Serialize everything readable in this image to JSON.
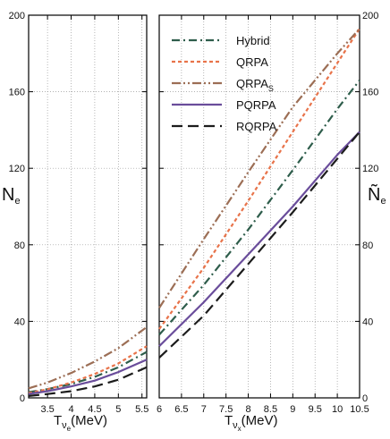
{
  "chart_data": [
    {
      "type": "line",
      "panel": "left",
      "xlim": [
        3.1,
        5.6
      ],
      "ylim": [
        0,
        200
      ],
      "x_ticks": [
        3.5,
        4,
        4.5,
        5,
        5.5
      ],
      "y_ticks": [
        0,
        40,
        80,
        120,
        160,
        200
      ],
      "x_tick_labels": [
        "3.5",
        "4",
        "4.5",
        "5",
        "5.5"
      ],
      "y_tick_labels": [
        "0",
        "40",
        "80",
        "120",
        "160",
        "200"
      ],
      "ylabel_main": "N",
      "ylabel_sub": "e",
      "xlabel_main": "T",
      "xlabel_sub": "ν",
      "xlabel_subsub": "e",
      "xlabel_unit": "(MeV)",
      "series": [
        {
          "name": "Hybrid",
          "x": [
            3.1,
            3.5,
            4,
            4.5,
            5,
            5.6
          ],
          "y": [
            3,
            4.6,
            7.2,
            11,
            16,
            24
          ]
        },
        {
          "name": "QRPA",
          "x": [
            3.1,
            3.5,
            4,
            4.5,
            5,
            5.6
          ],
          "y": [
            2.5,
            4.5,
            8,
            12.5,
            18,
            27
          ]
        },
        {
          "name": "QRPA_S",
          "x": [
            3.1,
            3.5,
            4,
            4.5,
            5,
            5.6
          ],
          "y": [
            5,
            8,
            13,
            19,
            26,
            37
          ]
        },
        {
          "name": "PQRPA",
          "x": [
            3.1,
            3.5,
            4,
            4.5,
            5,
            5.6
          ],
          "y": [
            2,
            3.5,
            6,
            9,
            13.5,
            20
          ]
        },
        {
          "name": "RQRPA",
          "x": [
            3.1,
            3.5,
            4,
            4.5,
            5,
            5.6
          ],
          "y": [
            1,
            2,
            3.5,
            6,
            9.5,
            16
          ]
        }
      ]
    },
    {
      "type": "line",
      "panel": "right",
      "xlim": [
        6,
        10.5
      ],
      "ylim": [
        0,
        200
      ],
      "x_ticks": [
        6,
        6.5,
        7,
        7.5,
        8,
        8.5,
        9,
        9.5,
        10,
        10.5
      ],
      "y_ticks": [
        0,
        40,
        80,
        120,
        160,
        200
      ],
      "x_tick_labels": [
        "6",
        "6.5",
        "7",
        "7.5",
        "8",
        "8.5",
        "9",
        "9.5",
        "10",
        "10.5"
      ],
      "y_tick_labels": [
        "0",
        "40",
        "80",
        "120",
        "160",
        "200"
      ],
      "ylabel_main": "Ñ",
      "ylabel_sub": "e",
      "xlabel_main": "T",
      "xlabel_sub": "ν",
      "xlabel_subsub": "x",
      "xlabel_unit": "(MeV)",
      "legend": {
        "placement": "top-left",
        "entries": [
          {
            "label": "Hybrid",
            "sub": ""
          },
          {
            "label": "QRPA",
            "sub": ""
          },
          {
            "label": "QRPA",
            "sub": "S"
          },
          {
            "label": "PQRPA",
            "sub": ""
          },
          {
            "label": "RQRPA",
            "sub": ""
          }
        ]
      },
      "series": [
        {
          "name": "Hybrid",
          "x": [
            6,
            7,
            8,
            9,
            10,
            10.5
          ],
          "y": [
            33,
            59,
            88,
            119,
            151,
            166
          ]
        },
        {
          "name": "QRPA",
          "x": [
            6,
            7,
            8,
            9,
            10,
            10.5
          ],
          "y": [
            36,
            68,
            103,
            139,
            175,
            193
          ]
        },
        {
          "name": "QRPA_S",
          "x": [
            6,
            7,
            8,
            9,
            10,
            10.5
          ],
          "y": [
            47,
            83,
            118,
            152,
            180,
            193
          ]
        },
        {
          "name": "PQRPA",
          "x": [
            6,
            7,
            8,
            9,
            10,
            10.5
          ],
          "y": [
            27,
            50,
            75,
            100,
            127,
            139
          ]
        },
        {
          "name": "RQRPA",
          "x": [
            6,
            7,
            8,
            9,
            10,
            10.5
          ],
          "y": [
            21,
            43,
            70,
            97,
            125,
            139
          ]
        }
      ]
    }
  ],
  "styles": {
    "Hybrid": {
      "color": "#2e5d4b",
      "dash": "9,4,2,4",
      "width": 2.2
    },
    "QRPA": {
      "color": "#e8734a",
      "dash": "4,3",
      "width": 2.2
    },
    "QRPA_S": {
      "color": "#9c6e55",
      "dash": "10,3,2,3,2,3",
      "width": 2.2
    },
    "PQRPA": {
      "color": "#6a4d9b",
      "dash": "",
      "width": 2.2
    },
    "RQRPA": {
      "color": "#1c1c1c",
      "dash": "12,6",
      "width": 2.2
    }
  }
}
